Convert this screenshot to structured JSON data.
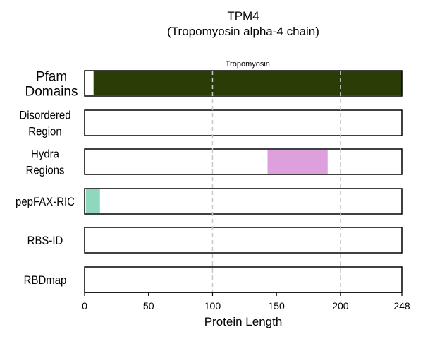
{
  "chart_data": {
    "type": "bar",
    "title": "TPM4",
    "subtitle": "(Tropomyosin alpha-4 chain)",
    "xlabel": "Protein Length",
    "ylabel": "",
    "xlim": [
      0,
      248
    ],
    "xticks": [
      0,
      50,
      100,
      150,
      200,
      248
    ],
    "gridlines": [
      100,
      200
    ],
    "grid": "vertical dashed at 100 and 200",
    "tracks": [
      {
        "name_lines": [
          "Pfam",
          "Domains"
        ],
        "segments": [
          {
            "start": 7,
            "end": 248,
            "label": "Tropomyosin",
            "color": "#2a3d06"
          }
        ]
      },
      {
        "name_lines": [
          "Disordered",
          "Region"
        ],
        "segments": []
      },
      {
        "name_lines": [
          "Hydra",
          "Regions"
        ],
        "segments": [
          {
            "start": 143,
            "end": 190,
            "label": "",
            "color": "#dda0dd"
          }
        ]
      },
      {
        "name_lines": [
          "pepFAX-RIC"
        ],
        "segments": [
          {
            "start": 1,
            "end": 12,
            "label": "",
            "color": "#8fd8be"
          }
        ]
      },
      {
        "name_lines": [
          "RBS-ID"
        ],
        "segments": []
      },
      {
        "name_lines": [
          "RBDmap"
        ],
        "segments": []
      }
    ]
  }
}
